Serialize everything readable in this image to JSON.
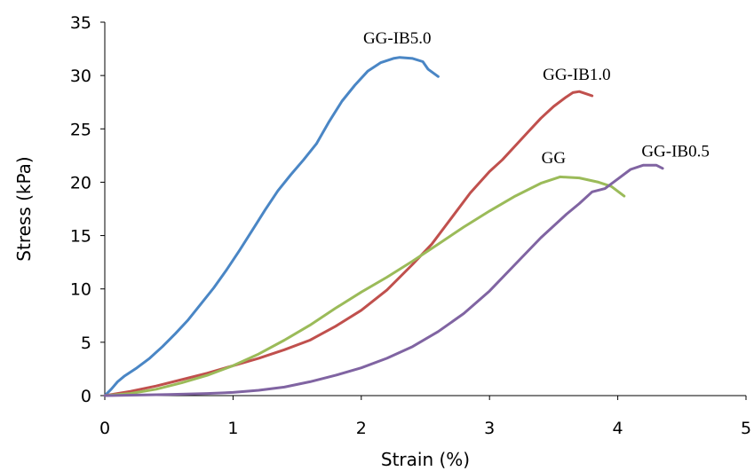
{
  "chart_data": {
    "type": "line",
    "title": "",
    "xlabel": "Strain (%)",
    "ylabel": "Stress (kPa)",
    "xlim": [
      0,
      5
    ],
    "ylim": [
      0,
      35
    ],
    "xticks": [
      "0",
      "1",
      "2",
      "3",
      "4",
      "5"
    ],
    "yticks": [
      "0",
      "5",
      "10",
      "15",
      "20",
      "25",
      "30",
      "35"
    ],
    "grid": false,
    "legend": "inline labels next to curves",
    "series": [
      {
        "name": "GG-IB5.0",
        "color": "#4a86c5",
        "points": [
          [
            0,
            0
          ],
          [
            0.05,
            0.6
          ],
          [
            0.1,
            1.3
          ],
          [
            0.15,
            1.8
          ],
          [
            0.25,
            2.6
          ],
          [
            0.35,
            3.5
          ],
          [
            0.45,
            4.6
          ],
          [
            0.55,
            5.8
          ],
          [
            0.65,
            7.1
          ],
          [
            0.75,
            8.6
          ],
          [
            0.85,
            10.1
          ],
          [
            0.95,
            11.8
          ],
          [
            1.05,
            13.6
          ],
          [
            1.15,
            15.5
          ],
          [
            1.25,
            17.4
          ],
          [
            1.35,
            19.2
          ],
          [
            1.45,
            20.7
          ],
          [
            1.55,
            22.1
          ],
          [
            1.65,
            23.6
          ],
          [
            1.75,
            25.7
          ],
          [
            1.85,
            27.6
          ],
          [
            1.95,
            29.1
          ],
          [
            2.05,
            30.4
          ],
          [
            2.15,
            31.2
          ],
          [
            2.25,
            31.6
          ],
          [
            2.3,
            31.7
          ],
          [
            2.4,
            31.6
          ],
          [
            2.48,
            31.3
          ],
          [
            2.52,
            30.6
          ],
          [
            2.6,
            29.9
          ]
        ]
      },
      {
        "name": "GG-IB1.0",
        "color": "#c0504d",
        "points": [
          [
            0,
            0
          ],
          [
            0.2,
            0.4
          ],
          [
            0.4,
            0.9
          ],
          [
            0.6,
            1.5
          ],
          [
            0.8,
            2.1
          ],
          [
            1.0,
            2.8
          ],
          [
            1.2,
            3.5
          ],
          [
            1.4,
            4.3
          ],
          [
            1.6,
            5.2
          ],
          [
            1.8,
            6.5
          ],
          [
            2.0,
            8.0
          ],
          [
            2.2,
            9.9
          ],
          [
            2.4,
            12.3
          ],
          [
            2.55,
            14.2
          ],
          [
            2.7,
            16.6
          ],
          [
            2.85,
            19.0
          ],
          [
            3.0,
            21.0
          ],
          [
            3.1,
            22.1
          ],
          [
            3.2,
            23.4
          ],
          [
            3.3,
            24.7
          ],
          [
            3.4,
            26.0
          ],
          [
            3.5,
            27.1
          ],
          [
            3.6,
            28.0
          ],
          [
            3.65,
            28.4
          ],
          [
            3.7,
            28.5
          ],
          [
            3.75,
            28.3
          ],
          [
            3.8,
            28.1
          ]
        ]
      },
      {
        "name": "GG",
        "color": "#9bbb59",
        "points": [
          [
            0,
            0
          ],
          [
            0.2,
            0.2
          ],
          [
            0.4,
            0.6
          ],
          [
            0.6,
            1.2
          ],
          [
            0.8,
            1.9
          ],
          [
            1.0,
            2.8
          ],
          [
            1.2,
            3.9
          ],
          [
            1.4,
            5.2
          ],
          [
            1.6,
            6.6
          ],
          [
            1.8,
            8.2
          ],
          [
            2.0,
            9.7
          ],
          [
            2.2,
            11.1
          ],
          [
            2.4,
            12.6
          ],
          [
            2.6,
            14.2
          ],
          [
            2.8,
            15.8
          ],
          [
            3.0,
            17.3
          ],
          [
            3.2,
            18.7
          ],
          [
            3.4,
            19.9
          ],
          [
            3.55,
            20.5
          ],
          [
            3.7,
            20.4
          ],
          [
            3.85,
            20.0
          ],
          [
            3.95,
            19.6
          ],
          [
            4.05,
            18.7
          ]
        ]
      },
      {
        "name": "GG-IB0.5",
        "color": "#8064a2",
        "points": [
          [
            0,
            0
          ],
          [
            0.5,
            0.1
          ],
          [
            0.8,
            0.2
          ],
          [
            1.0,
            0.3
          ],
          [
            1.2,
            0.5
          ],
          [
            1.4,
            0.8
          ],
          [
            1.6,
            1.3
          ],
          [
            1.8,
            1.9
          ],
          [
            2.0,
            2.6
          ],
          [
            2.2,
            3.5
          ],
          [
            2.4,
            4.6
          ],
          [
            2.6,
            6.0
          ],
          [
            2.8,
            7.7
          ],
          [
            3.0,
            9.8
          ],
          [
            3.2,
            12.3
          ],
          [
            3.4,
            14.8
          ],
          [
            3.6,
            17.0
          ],
          [
            3.7,
            18.0
          ],
          [
            3.8,
            19.1
          ],
          [
            3.9,
            19.4
          ],
          [
            4.0,
            20.3
          ],
          [
            4.1,
            21.2
          ],
          [
            4.2,
            21.6
          ],
          [
            4.3,
            21.6
          ],
          [
            4.35,
            21.3
          ]
        ]
      }
    ],
    "labels": [
      {
        "text": "GG-IB5.0",
        "x": 2.28,
        "y": 33.0
      },
      {
        "text": "GG-IB1.0",
        "x": 3.68,
        "y": 29.6
      },
      {
        "text": "GG",
        "x": 3.5,
        "y": 21.8
      },
      {
        "text": "GG-IB0.5",
        "x": 4.45,
        "y": 22.4
      }
    ]
  }
}
